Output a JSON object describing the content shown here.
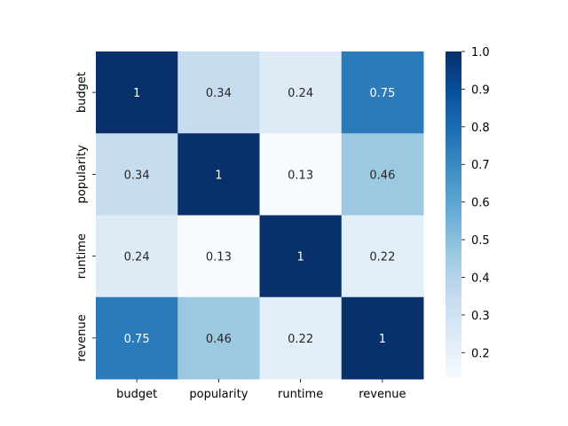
{
  "chart_data": {
    "type": "heatmap",
    "x_labels": [
      "budget",
      "popularity",
      "runtime",
      "revenue"
    ],
    "y_labels": [
      "budget",
      "popularity",
      "runtime",
      "revenue"
    ],
    "values": [
      [
        1,
        0.34,
        0.24,
        0.75
      ],
      [
        0.34,
        1,
        0.13,
        0.46
      ],
      [
        0.24,
        0.13,
        1,
        0.22
      ],
      [
        0.75,
        0.46,
        0.22,
        1
      ]
    ],
    "annotations": [
      [
        "1",
        "0.34",
        "0.24",
        "0.75"
      ],
      [
        "0.34",
        "1",
        "0.13",
        "0.46"
      ],
      [
        "0.24",
        "0.13",
        "1",
        "0.22"
      ],
      [
        "0.75",
        "0.46",
        "0.22",
        "1"
      ]
    ],
    "colormap": "Blues",
    "vmin": 0.13,
    "vmax": 1.0,
    "colorbar_ticks": [
      0.2,
      0.3,
      0.4,
      0.5,
      0.6,
      0.7,
      0.8,
      0.9,
      1.0
    ],
    "colorbar_tick_labels": [
      "0.2",
      "0.3",
      "0.4",
      "0.5",
      "0.6",
      "0.7",
      "0.8",
      "0.9",
      "1.0"
    ]
  }
}
